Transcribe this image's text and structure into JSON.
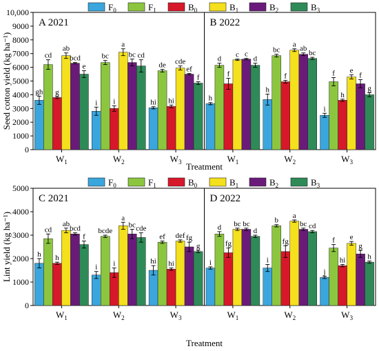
{
  "legend": {
    "items": [
      {
        "key": "F0",
        "base": "F",
        "sub": "0",
        "color": "#3aa6dd"
      },
      {
        "key": "F1",
        "base": "F",
        "sub": "1",
        "color": "#8cc63f"
      },
      {
        "key": "B0",
        "base": "B",
        "sub": "0",
        "color": "#d7182a"
      },
      {
        "key": "B1",
        "base": "B",
        "sub": "1",
        "color": "#f4e01c"
      },
      {
        "key": "B2",
        "base": "B",
        "sub": "2",
        "color": "#6a1b7a"
      },
      {
        "key": "B3",
        "base": "B",
        "sub": "3",
        "color": "#2e8b57"
      }
    ]
  },
  "chart_data": [
    {
      "type": "bar",
      "ylabel": "Seed cotton yield (kg ha⁻¹)",
      "xlabel": "Treatment",
      "ylim": [
        0,
        10000
      ],
      "yticks": [
        0,
        1000,
        2000,
        3000,
        4000,
        5000,
        6000,
        7000,
        8000,
        9000,
        10000
      ],
      "ytick_labels": [
        "0",
        "1000",
        "2000",
        "3000",
        "4000",
        "5000",
        "6000",
        "7000",
        "8000",
        "9000",
        "10,000"
      ],
      "panels": [
        {
          "label": "A 2021",
          "categories": [
            {
              "base": "W",
              "sub": "1"
            },
            {
              "base": "W",
              "sub": "2"
            },
            {
              "base": "W",
              "sub": "3"
            }
          ],
          "series": [
            {
              "name": "F0",
              "values": [
                3600,
                2800,
                3050
              ],
              "errors": [
                300,
                300,
                80
              ],
              "letters": [
                "gh",
                "i",
                "hi"
              ]
            },
            {
              "name": "F1",
              "values": [
                6200,
                6350,
                5750
              ],
              "errors": [
                350,
                150,
                100
              ],
              "letters": [
                "cd",
                "bc",
                "de"
              ]
            },
            {
              "name": "B0",
              "values": [
                3800,
                3000,
                3150
              ],
              "errors": [
                80,
                200,
                100
              ],
              "letters": [
                "g",
                "i",
                "hi"
              ]
            },
            {
              "name": "B1",
              "values": [
                6850,
                7100,
                5950
              ],
              "errors": [
                200,
                250,
                150
              ],
              "letters": [
                "ab",
                "a",
                "cde"
              ]
            },
            {
              "name": "B2",
              "values": [
                6300,
                6350,
                5500
              ],
              "errors": [
                50,
                250,
                50
              ],
              "letters": [
                "bcd",
                "bc",
                "ef"
              ]
            },
            {
              "name": "B3",
              "values": [
                5500,
                6100,
                4850
              ],
              "errors": [
                250,
                450,
                100
              ],
              "letters": [
                "e",
                "cd",
                "f"
              ]
            }
          ]
        },
        {
          "label": "B 2022",
          "categories": [
            {
              "base": "W",
              "sub": "1"
            },
            {
              "base": "W",
              "sub": "2"
            },
            {
              "base": "W",
              "sub": "3"
            }
          ],
          "series": [
            {
              "name": "F0",
              "values": [
                3350,
                3650,
                2500
              ],
              "errors": [
                80,
                400,
                150
              ],
              "letters": [
                "h",
                "h",
                "i"
              ]
            },
            {
              "name": "F1",
              "values": [
                6150,
                6850,
                4950
              ],
              "errors": [
                150,
                100,
                300
              ],
              "letters": [
                "d",
                "bc",
                "f"
              ]
            },
            {
              "name": "B0",
              "values": [
                4800,
                4950,
                3600
              ],
              "errors": [
                400,
                100,
                80
              ],
              "letters": [
                "f",
                "f",
                "h"
              ]
            },
            {
              "name": "B1",
              "values": [
                6550,
                7250,
                5300
              ],
              "errors": [
                50,
                100,
                150
              ],
              "letters": [
                "c",
                "a",
                "e"
              ]
            },
            {
              "name": "B2",
              "values": [
                6600,
                6950,
                4800
              ],
              "errors": [
                50,
                100,
                300
              ],
              "letters": [
                "c",
                "ab",
                "f"
              ]
            },
            {
              "name": "B3",
              "values": [
                6150,
                6650,
                4000
              ],
              "errors": [
                150,
                80,
                150
              ],
              "letters": [
                "d",
                "bc",
                "g"
              ]
            }
          ]
        }
      ]
    },
    {
      "type": "bar",
      "ylabel": "Lint yield (kg ha⁻¹)",
      "xlabel": "Treatment",
      "ylim": [
        0,
        5000
      ],
      "yticks": [
        0,
        1000,
        2000,
        3000,
        4000,
        5000
      ],
      "ytick_labels": [
        "0",
        "1000",
        "2000",
        "3000",
        "4000",
        "5000"
      ],
      "panels": [
        {
          "label": "C 2021",
          "categories": [
            {
              "base": "W",
              "sub": "1"
            },
            {
              "base": "W",
              "sub": "2"
            },
            {
              "base": "W",
              "sub": "3"
            }
          ],
          "series": [
            {
              "name": "F0",
              "values": [
                1800,
                1300,
                1500
              ],
              "errors": [
                200,
                150,
                200
              ],
              "letters": [
                "h",
                "i",
                "hi"
              ]
            },
            {
              "name": "F1",
              "values": [
                2850,
                2950,
                2700
              ],
              "errors": [
                200,
                50,
                50
              ],
              "letters": [
                "cd",
                "bcde",
                "ef"
              ]
            },
            {
              "name": "B0",
              "values": [
                1800,
                1400,
                1550
              ],
              "errors": [
                50,
                200,
                50
              ],
              "letters": [
                "h",
                "i",
                "hi"
              ]
            },
            {
              "name": "B1",
              "values": [
                3200,
                3400,
                2750
              ],
              "errors": [
                100,
                150,
                50
              ],
              "letters": [
                "ab",
                "a",
                "def"
              ]
            },
            {
              "name": "B2",
              "values": [
                3050,
                3050,
                2500
              ],
              "errors": [
                50,
                200,
                200
              ],
              "letters": [
                "bcd",
                "bc",
                "fg"
              ]
            },
            {
              "name": "B3",
              "values": [
                2600,
                2900,
                2300
              ],
              "errors": [
                150,
                200,
                50
              ],
              "letters": [
                "f",
                "cde",
                "g"
              ]
            }
          ]
        },
        {
          "label": "D 2022",
          "categories": [
            {
              "base": "W",
              "sub": "1"
            },
            {
              "base": "W",
              "sub": "2"
            },
            {
              "base": "W",
              "sub": "3"
            }
          ],
          "series": [
            {
              "name": "F0",
              "values": [
                1600,
                1600,
                1200
              ],
              "errors": [
                50,
                150,
                50
              ],
              "letters": [
                "i",
                "i",
                "j"
              ]
            },
            {
              "name": "F1",
              "values": [
                3050,
                3400,
                2450
              ],
              "errors": [
                100,
                50,
                150
              ],
              "letters": [
                "d",
                "b",
                "f"
              ]
            },
            {
              "name": "B0",
              "values": [
                2250,
                2300,
                1700
              ],
              "errors": [
                200,
                250,
                50
              ],
              "letters": [
                "fg",
                "fg",
                "hi"
              ]
            },
            {
              "name": "B1",
              "values": [
                3250,
                3600,
                2650
              ],
              "errors": [
                50,
                50,
                80
              ],
              "letters": [
                "bc",
                "a",
                "e"
              ]
            },
            {
              "name": "B2",
              "values": [
                3250,
                3250,
                2200
              ],
              "errors": [
                50,
                50,
                150
              ],
              "letters": [
                "bc",
                "bc",
                "g"
              ]
            },
            {
              "name": "B3",
              "values": [
                2950,
                3150,
                1850
              ],
              "errors": [
                50,
                50,
                50
              ],
              "letters": [
                "d",
                "cd",
                "h"
              ]
            }
          ]
        }
      ]
    }
  ]
}
